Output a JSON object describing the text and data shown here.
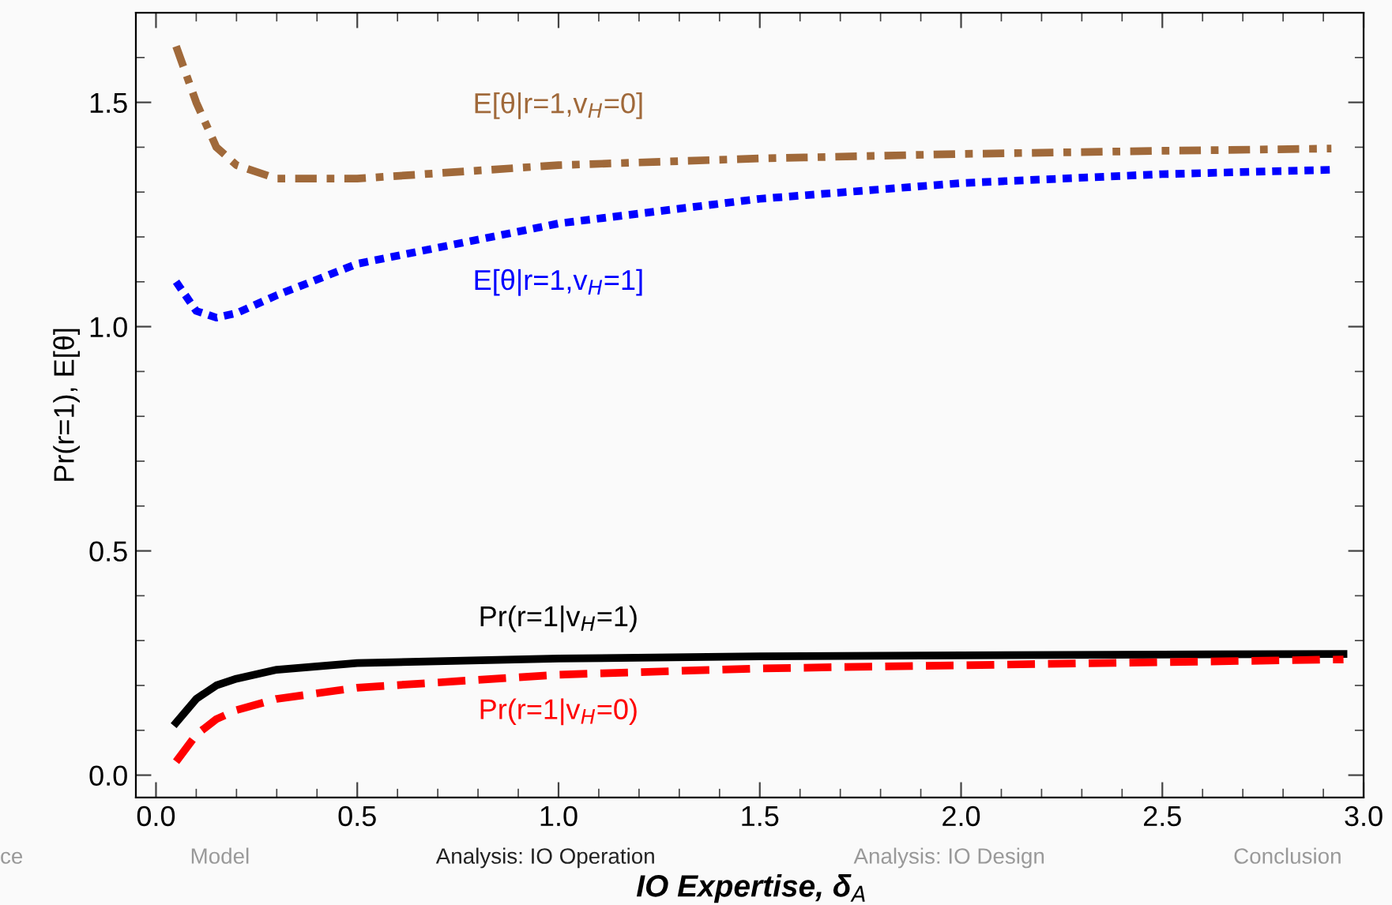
{
  "chart_data": {
    "type": "line",
    "xlabel": "IO Expertise, δ$_{A}$",
    "ylabel": "Pr(r=1), E[θ]",
    "xlim": [
      -0.05,
      3.0
    ],
    "ylim": [
      -0.05,
      1.7
    ],
    "xticks": [
      {
        "value": 0,
        "label": "0.0"
      },
      0.5,
      {
        "value": 1,
        "label": "1.0"
      },
      1.5,
      {
        "value": 2,
        "label": "2.0"
      },
      2.5,
      {
        "value": 3,
        "label": "3.0"
      }
    ],
    "yticks": [
      {
        "value": 0,
        "label": "0.0"
      },
      0.5,
      {
        "value": 1,
        "label": "1.0"
      },
      1.5
    ],
    "grid": false,
    "legend": false,
    "series": [
      {
        "name": "E[θ|r=1,v$_{H}$=0]",
        "color": "#a0693a",
        "line_style": "dashdot",
        "x": [
          0.05,
          0.1,
          0.15,
          0.2,
          0.3,
          0.5,
          1.0,
          1.5,
          2.0,
          2.5,
          2.92
        ],
        "values": [
          1.625,
          1.5,
          1.4,
          1.36,
          1.33,
          1.33,
          1.36,
          1.375,
          1.385,
          1.392,
          1.397
        ]
      },
      {
        "name": "E[θ|r=1,v$_{H}$=1]",
        "color": "#0000ff",
        "line_style": "dotted",
        "x": [
          0.05,
          0.1,
          0.15,
          0.2,
          0.3,
          0.5,
          1.0,
          1.5,
          2.0,
          2.5,
          2.93
        ],
        "values": [
          1.1,
          1.035,
          1.02,
          1.03,
          1.07,
          1.14,
          1.23,
          1.285,
          1.32,
          1.34,
          1.35
        ]
      },
      {
        "name": "Pr(r=1|v$_{H}$=1)",
        "color": "#000000",
        "line_style": "solid",
        "x": [
          0.05,
          0.1,
          0.15,
          0.2,
          0.3,
          0.5,
          1.0,
          1.5,
          2.0,
          2.5,
          2.95
        ],
        "values": [
          0.117,
          0.17,
          0.2,
          0.215,
          0.235,
          0.25,
          0.26,
          0.265,
          0.267,
          0.269,
          0.27
        ]
      },
      {
        "name": "Pr(r=1|v$_{H}$=0)",
        "color": "#ff0000",
        "line_style": "dashed",
        "x": [
          0.05,
          0.1,
          0.15,
          0.2,
          0.3,
          0.5,
          1.0,
          1.5,
          2.0,
          2.5,
          2.95
        ],
        "values": [
          0.03,
          0.09,
          0.125,
          0.145,
          0.17,
          0.195,
          0.224,
          0.238,
          0.245,
          0.252,
          0.258
        ]
      }
    ],
    "annotations": [
      "ce",
      "Model",
      "Analysis: IO Operation",
      "Analysis: IO Design",
      "Conclusion"
    ]
  }
}
